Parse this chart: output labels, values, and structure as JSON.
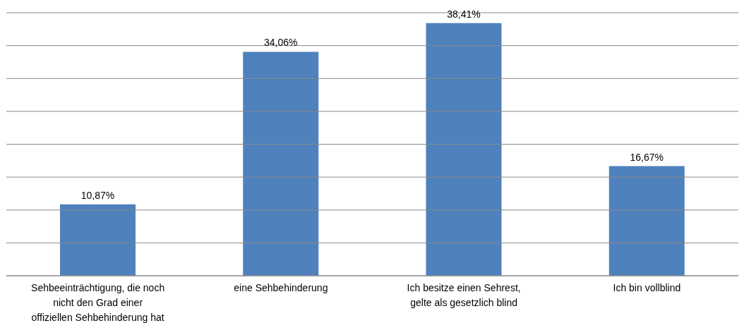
{
  "chart_data": {
    "type": "bar",
    "categories": [
      "Sehbeeinträchtigung, die noch nicht den Grad einer offiziellen Sehbehinderung hat",
      "eine Sehbehinderung",
      "Ich besitze einen Sehrest, gelte als gesetzlich blind",
      "Ich bin vollblind"
    ],
    "values": [
      10.87,
      34.06,
      38.41,
      16.67
    ],
    "value_labels": [
      "10,87%",
      "34,06%",
      "38,41%",
      "16,67%"
    ],
    "color": "#4f81bd",
    "ylim": [
      0,
      40
    ],
    "yticks": [
      {
        "value": 0,
        "label": null
      },
      {
        "value": 5,
        "label": null
      },
      {
        "value": 10,
        "label": null
      },
      {
        "value": 15,
        "label": null
      },
      {
        "value": 20,
        "label": null
      },
      {
        "value": 25,
        "label": null
      },
      {
        "value": 30,
        "label": null
      },
      {
        "value": 35,
        "label": null
      },
      {
        "value": 40,
        "label": null
      }
    ],
    "grid": "y",
    "tick_labels": "x"
  }
}
